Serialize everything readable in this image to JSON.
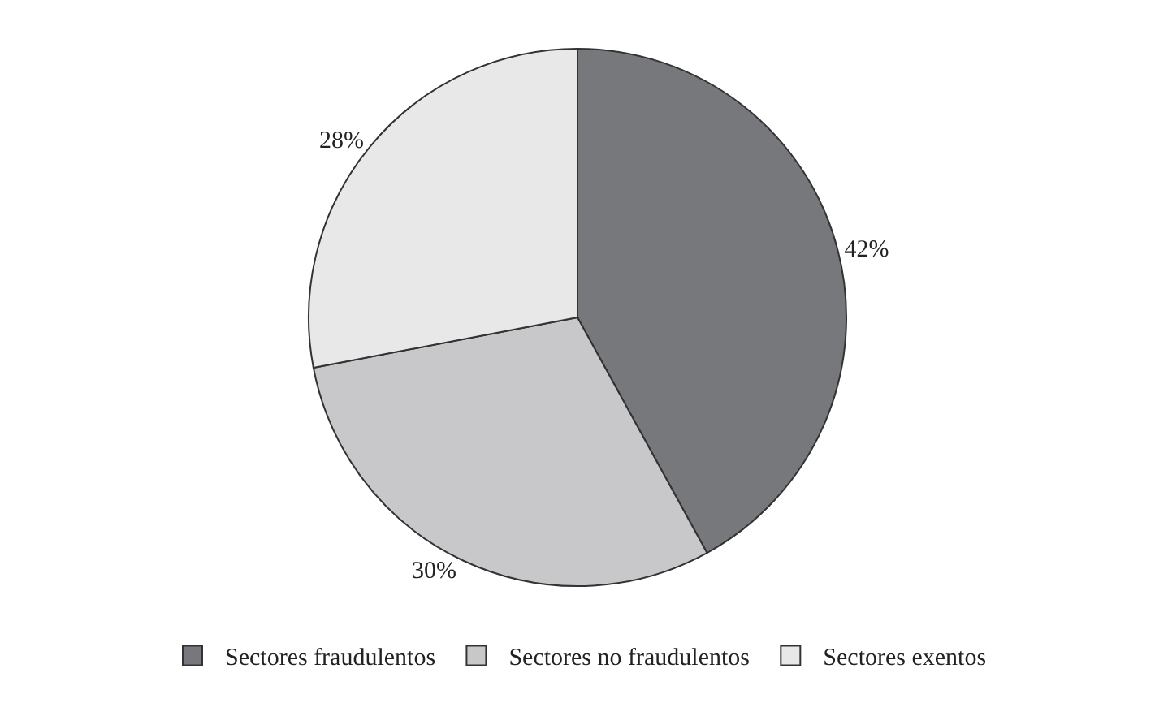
{
  "chart_data": {
    "type": "pie",
    "categories": [
      "Sectores fraudulentos",
      "Sectores no fraudulentos",
      "Sectores exentos"
    ],
    "values": [
      42,
      30,
      28
    ],
    "colors": [
      "#77787b",
      "#c8c8ca",
      "#e8e8e9"
    ],
    "value_labels": [
      "42%",
      "30%",
      "28%"
    ],
    "legend": "bottom"
  }
}
